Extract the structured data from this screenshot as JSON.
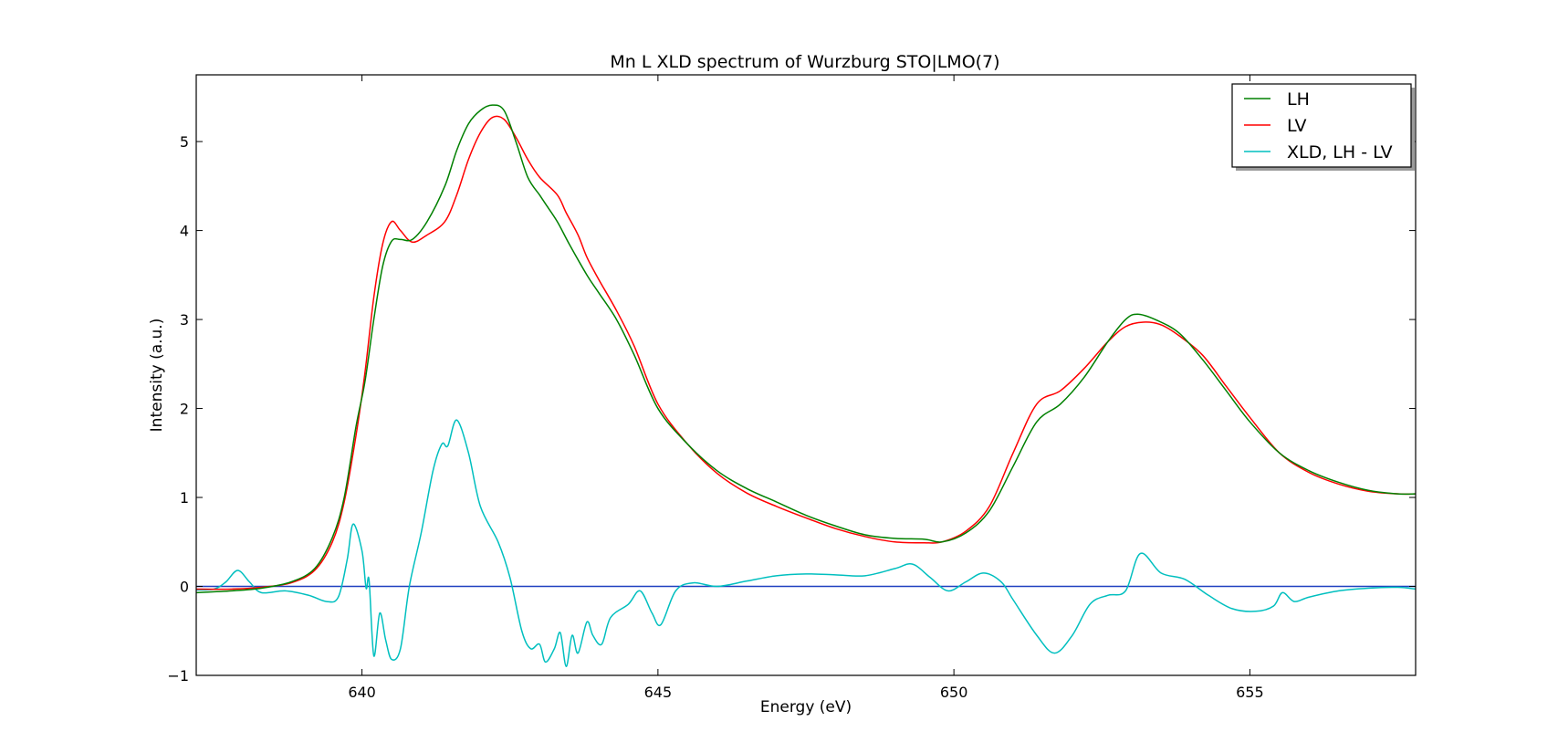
{
  "chart_data": {
    "type": "line",
    "title": "Mn L XLD spectrum of Wurzburg STO|LMO(7)",
    "xlabel": "Energy (eV)",
    "ylabel": "Intensity (a.u.)",
    "xlim": [
      637.2,
      657.8
    ],
    "ylim": [
      -1,
      5.75
    ],
    "xticks": [
      640,
      645,
      650,
      655
    ],
    "yticks": [
      -1,
      0,
      1,
      2,
      3,
      4,
      5
    ],
    "grid": false,
    "legend_position": "top-right",
    "zero_line": {
      "y": 0,
      "color": "#1f3fbf"
    },
    "series": [
      {
        "name": "LH",
        "color": "#008000",
        "points": [
          [
            637.2,
            -0.07
          ],
          [
            637.8,
            -0.05
          ],
          [
            638.3,
            -0.02
          ],
          [
            638.8,
            0.05
          ],
          [
            639.2,
            0.2
          ],
          [
            639.5,
            0.55
          ],
          [
            639.7,
            1.0
          ],
          [
            639.9,
            1.8
          ],
          [
            640.05,
            2.3
          ],
          [
            640.2,
            3.0
          ],
          [
            640.35,
            3.6
          ],
          [
            640.5,
            3.88
          ],
          [
            640.65,
            3.9
          ],
          [
            640.85,
            3.9
          ],
          [
            641.1,
            4.1
          ],
          [
            641.4,
            4.5
          ],
          [
            641.6,
            4.9
          ],
          [
            641.8,
            5.2
          ],
          [
            642.0,
            5.35
          ],
          [
            642.2,
            5.41
          ],
          [
            642.4,
            5.35
          ],
          [
            642.6,
            5.0
          ],
          [
            642.8,
            4.6
          ],
          [
            643.0,
            4.4
          ],
          [
            643.1,
            4.3
          ],
          [
            643.3,
            4.1
          ],
          [
            643.5,
            3.85
          ],
          [
            643.8,
            3.5
          ],
          [
            644.0,
            3.3
          ],
          [
            644.3,
            3.0
          ],
          [
            644.6,
            2.6
          ],
          [
            645.0,
            2.0
          ],
          [
            645.5,
            1.6
          ],
          [
            646.0,
            1.3
          ],
          [
            646.5,
            1.1
          ],
          [
            647.0,
            0.95
          ],
          [
            647.5,
            0.8
          ],
          [
            648.0,
            0.68
          ],
          [
            648.5,
            0.58
          ],
          [
            649.0,
            0.54
          ],
          [
            649.5,
            0.53
          ],
          [
            649.8,
            0.5
          ],
          [
            650.2,
            0.6
          ],
          [
            650.6,
            0.85
          ],
          [
            651.0,
            1.35
          ],
          [
            651.4,
            1.85
          ],
          [
            651.8,
            2.05
          ],
          [
            652.2,
            2.35
          ],
          [
            652.6,
            2.75
          ],
          [
            652.9,
            3.0
          ],
          [
            653.1,
            3.06
          ],
          [
            653.4,
            3.0
          ],
          [
            653.8,
            2.85
          ],
          [
            654.2,
            2.55
          ],
          [
            654.6,
            2.2
          ],
          [
            655.0,
            1.85
          ],
          [
            655.5,
            1.5
          ],
          [
            656.0,
            1.3
          ],
          [
            656.5,
            1.17
          ],
          [
            657.0,
            1.08
          ],
          [
            657.5,
            1.04
          ],
          [
            657.8,
            1.04
          ]
        ]
      },
      {
        "name": "LV",
        "color": "#ff0000",
        "points": [
          [
            637.2,
            -0.03
          ],
          [
            637.8,
            -0.03
          ],
          [
            638.3,
            -0.01
          ],
          [
            638.8,
            0.04
          ],
          [
            639.2,
            0.18
          ],
          [
            639.5,
            0.5
          ],
          [
            639.7,
            0.95
          ],
          [
            639.9,
            1.7
          ],
          [
            640.05,
            2.4
          ],
          [
            640.2,
            3.25
          ],
          [
            640.35,
            3.85
          ],
          [
            640.5,
            4.1
          ],
          [
            640.65,
            4.0
          ],
          [
            640.85,
            3.87
          ],
          [
            641.1,
            3.95
          ],
          [
            641.4,
            4.1
          ],
          [
            641.6,
            4.4
          ],
          [
            641.8,
            4.8
          ],
          [
            642.0,
            5.1
          ],
          [
            642.2,
            5.27
          ],
          [
            642.4,
            5.25
          ],
          [
            642.6,
            5.05
          ],
          [
            642.8,
            4.8
          ],
          [
            643.0,
            4.6
          ],
          [
            643.3,
            4.4
          ],
          [
            643.45,
            4.2
          ],
          [
            643.65,
            3.95
          ],
          [
            643.8,
            3.7
          ],
          [
            644.0,
            3.45
          ],
          [
            644.3,
            3.1
          ],
          [
            644.6,
            2.7
          ],
          [
            645.0,
            2.05
          ],
          [
            645.5,
            1.6
          ],
          [
            646.0,
            1.27
          ],
          [
            646.5,
            1.05
          ],
          [
            647.0,
            0.9
          ],
          [
            647.5,
            0.77
          ],
          [
            648.0,
            0.65
          ],
          [
            648.5,
            0.56
          ],
          [
            649.0,
            0.5
          ],
          [
            649.5,
            0.49
          ],
          [
            649.8,
            0.5
          ],
          [
            650.2,
            0.62
          ],
          [
            650.6,
            0.9
          ],
          [
            651.0,
            1.5
          ],
          [
            651.4,
            2.05
          ],
          [
            651.8,
            2.2
          ],
          [
            652.2,
            2.45
          ],
          [
            652.6,
            2.75
          ],
          [
            652.9,
            2.92
          ],
          [
            653.2,
            2.97
          ],
          [
            653.5,
            2.94
          ],
          [
            653.8,
            2.82
          ],
          [
            654.2,
            2.6
          ],
          [
            654.6,
            2.25
          ],
          [
            655.0,
            1.9
          ],
          [
            655.5,
            1.5
          ],
          [
            656.0,
            1.28
          ],
          [
            656.5,
            1.15
          ],
          [
            657.0,
            1.07
          ],
          [
            657.5,
            1.04
          ],
          [
            657.8,
            1.04
          ]
        ]
      },
      {
        "name": "XLD, LH - LV",
        "color": "#00bfbf",
        "points": [
          [
            637.2,
            -0.04
          ],
          [
            637.5,
            -0.03
          ],
          [
            637.7,
            0.05
          ],
          [
            637.9,
            0.18
          ],
          [
            638.1,
            0.05
          ],
          [
            638.3,
            -0.07
          ],
          [
            638.7,
            -0.05
          ],
          [
            639.1,
            -0.1
          ],
          [
            639.4,
            -0.17
          ],
          [
            639.6,
            -0.12
          ],
          [
            639.75,
            0.3
          ],
          [
            639.85,
            0.7
          ],
          [
            640.0,
            0.4
          ],
          [
            640.07,
            -0.02
          ],
          [
            640.12,
            0.07
          ],
          [
            640.2,
            -0.78
          ],
          [
            640.3,
            -0.3
          ],
          [
            640.4,
            -0.6
          ],
          [
            640.5,
            -0.82
          ],
          [
            640.65,
            -0.7
          ],
          [
            640.8,
            0.0
          ],
          [
            641.0,
            0.6
          ],
          [
            641.2,
            1.3
          ],
          [
            641.35,
            1.6
          ],
          [
            641.45,
            1.58
          ],
          [
            641.6,
            1.87
          ],
          [
            641.8,
            1.5
          ],
          [
            642.0,
            0.9
          ],
          [
            642.3,
            0.5
          ],
          [
            642.5,
            0.1
          ],
          [
            642.7,
            -0.5
          ],
          [
            642.85,
            -0.7
          ],
          [
            643.0,
            -0.65
          ],
          [
            643.1,
            -0.85
          ],
          [
            643.25,
            -0.7
          ],
          [
            643.35,
            -0.52
          ],
          [
            643.45,
            -0.9
          ],
          [
            643.55,
            -0.55
          ],
          [
            643.65,
            -0.75
          ],
          [
            643.8,
            -0.4
          ],
          [
            643.9,
            -0.55
          ],
          [
            644.05,
            -0.65
          ],
          [
            644.2,
            -0.35
          ],
          [
            644.5,
            -0.2
          ],
          [
            644.7,
            -0.05
          ],
          [
            644.9,
            -0.3
          ],
          [
            645.05,
            -0.43
          ],
          [
            645.3,
            -0.05
          ],
          [
            645.6,
            0.04
          ],
          [
            646.0,
            0.0
          ],
          [
            646.5,
            0.06
          ],
          [
            647.0,
            0.12
          ],
          [
            647.5,
            0.14
          ],
          [
            648.0,
            0.13
          ],
          [
            648.5,
            0.12
          ],
          [
            649.0,
            0.2
          ],
          [
            649.3,
            0.25
          ],
          [
            649.6,
            0.1
          ],
          [
            649.9,
            -0.05
          ],
          [
            650.2,
            0.05
          ],
          [
            650.5,
            0.15
          ],
          [
            650.8,
            0.05
          ],
          [
            651.0,
            -0.15
          ],
          [
            651.4,
            -0.55
          ],
          [
            651.7,
            -0.75
          ],
          [
            652.0,
            -0.55
          ],
          [
            652.3,
            -0.2
          ],
          [
            652.6,
            -0.1
          ],
          [
            652.9,
            -0.05
          ],
          [
            653.15,
            0.37
          ],
          [
            653.5,
            0.15
          ],
          [
            653.9,
            0.08
          ],
          [
            654.3,
            -0.1
          ],
          [
            654.7,
            -0.25
          ],
          [
            655.1,
            -0.28
          ],
          [
            655.4,
            -0.22
          ],
          [
            655.55,
            -0.07
          ],
          [
            655.75,
            -0.17
          ],
          [
            656.0,
            -0.12
          ],
          [
            656.5,
            -0.05
          ],
          [
            657.0,
            -0.02
          ],
          [
            657.5,
            -0.01
          ],
          [
            657.8,
            -0.03
          ]
        ]
      }
    ]
  }
}
